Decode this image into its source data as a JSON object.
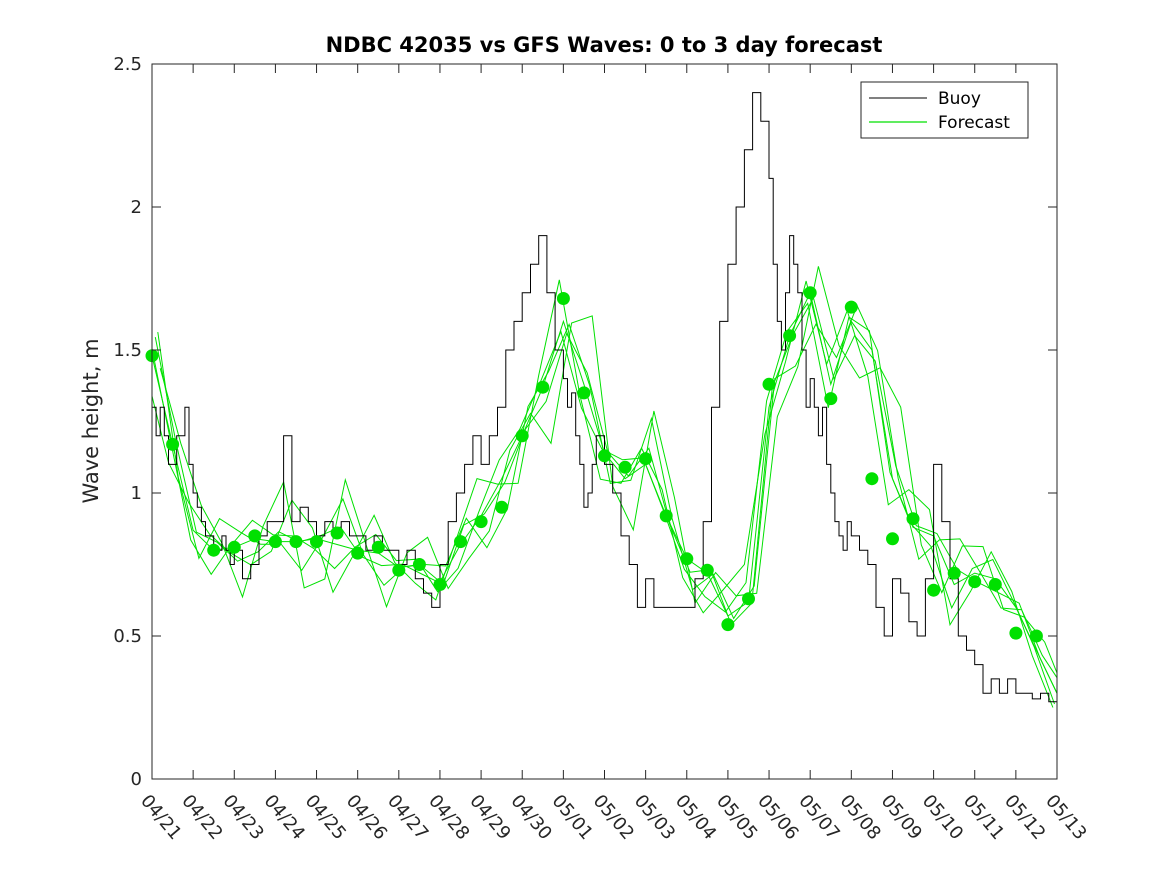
{
  "chart_data": {
    "type": "line",
    "title": "NDBC 42035 vs GFS Waves: 0 to 3 day forecast",
    "xlabel": "",
    "ylabel": "Wave height, m",
    "ylim": [
      0,
      2.5
    ],
    "xlim": [
      0,
      22
    ],
    "yticks": [
      0,
      0.5,
      1,
      1.5,
      2,
      2.5
    ],
    "ytick_labels": [
      "0",
      "0.5",
      "1",
      "1.5",
      "2",
      "2.5"
    ],
    "xtick_labels": [
      "04/21",
      "04/22",
      "04/23",
      "04/24",
      "04/25",
      "04/26",
      "04/27",
      "04/28",
      "04/29",
      "04/30",
      "05/01",
      "05/02",
      "05/03",
      "05/04",
      "05/05",
      "05/06",
      "05/07",
      "05/08",
      "05/09",
      "05/10",
      "05/11",
      "05/12",
      "05/13"
    ],
    "legend": {
      "position": "top-right",
      "entries": [
        "Buoy",
        "Forecast"
      ]
    },
    "colors": {
      "buoy": "#000000",
      "forecast": "#00e000",
      "axis": "#262626"
    },
    "series": [
      {
        "name": "Buoy",
        "x": [
          0,
          0.1,
          0.2,
          0.3,
          0.4,
          0.5,
          0.6,
          0.7,
          0.8,
          0.9,
          1.0,
          1.1,
          1.2,
          1.3,
          1.4,
          1.5,
          1.6,
          1.7,
          1.8,
          1.9,
          2.0,
          2.2,
          2.4,
          2.6,
          2.8,
          3.0,
          3.2,
          3.4,
          3.6,
          3.8,
          4.0,
          4.2,
          4.4,
          4.6,
          4.8,
          5.0,
          5.2,
          5.4,
          5.6,
          5.8,
          6.0,
          6.2,
          6.4,
          6.6,
          6.8,
          7.0,
          7.2,
          7.4,
          7.6,
          7.8,
          8.0,
          8.2,
          8.4,
          8.6,
          8.8,
          9.0,
          9.2,
          9.4,
          9.6,
          9.8,
          10.0,
          10.1,
          10.2,
          10.3,
          10.4,
          10.5,
          10.6,
          10.7,
          10.8,
          11.0,
          11.2,
          11.4,
          11.6,
          11.8,
          12.0,
          12.2,
          12.4,
          12.6,
          12.8,
          13.0,
          13.2,
          13.4,
          13.6,
          13.8,
          14.0,
          14.2,
          14.4,
          14.6,
          14.8,
          15.0,
          15.1,
          15.2,
          15.3,
          15.4,
          15.5,
          15.6,
          15.7,
          15.8,
          15.9,
          16.0,
          16.1,
          16.2,
          16.3,
          16.4,
          16.5,
          16.6,
          16.7,
          16.8,
          16.9,
          17.0,
          17.2,
          17.4,
          17.6,
          17.8,
          18.0,
          18.2,
          18.4,
          18.6,
          18.8,
          19.0,
          19.2,
          19.4,
          19.6,
          19.8,
          20.0,
          20.2,
          20.4,
          20.6,
          20.8,
          21.0,
          21.2,
          21.4,
          21.6,
          21.8,
          22.0
        ],
        "values": [
          1.3,
          1.2,
          1.3,
          1.2,
          1.1,
          1.1,
          1.2,
          1.2,
          1.3,
          1.1,
          1.0,
          0.95,
          0.9,
          0.85,
          0.85,
          0.8,
          0.8,
          0.85,
          0.8,
          0.75,
          0.8,
          0.7,
          0.75,
          0.85,
          0.9,
          0.9,
          1.2,
          0.9,
          0.95,
          0.9,
          0.85,
          0.9,
          0.85,
          0.9,
          0.85,
          0.85,
          0.8,
          0.85,
          0.8,
          0.8,
          0.75,
          0.8,
          0.7,
          0.65,
          0.6,
          0.75,
          0.9,
          1.0,
          1.1,
          1.2,
          1.1,
          1.2,
          1.3,
          1.5,
          1.6,
          1.7,
          1.8,
          1.9,
          1.7,
          1.5,
          1.4,
          1.3,
          1.35,
          1.2,
          1.1,
          0.95,
          1.0,
          1.1,
          1.2,
          1.1,
          1.0,
          0.85,
          0.75,
          0.6,
          0.7,
          0.6,
          0.6,
          0.6,
          0.6,
          0.6,
          0.7,
          0.9,
          1.3,
          1.6,
          1.8,
          2.0,
          2.2,
          2.4,
          2.3,
          2.1,
          1.8,
          1.6,
          1.5,
          1.7,
          1.9,
          1.8,
          1.7,
          1.5,
          1.3,
          1.4,
          1.3,
          1.2,
          1.3,
          1.1,
          1.0,
          0.9,
          0.85,
          0.8,
          0.9,
          0.85,
          0.8,
          0.75,
          0.6,
          0.5,
          0.7,
          0.65,
          0.55,
          0.5,
          0.7,
          1.1,
          0.9,
          0.7,
          0.5,
          0.45,
          0.4,
          0.3,
          0.35,
          0.3,
          0.35,
          0.3,
          0.3,
          0.28,
          0.3,
          0.27,
          0.27
        ]
      },
      {
        "name": "Forecast",
        "x": [
          0,
          0.5,
          1,
          1.5,
          2,
          2.5,
          3,
          3.5,
          4,
          4.5,
          5,
          5.5,
          6,
          6.5,
          7,
          7.5,
          8,
          8.5,
          9,
          9.5,
          10,
          10.5,
          11,
          11.5,
          12,
          12.5,
          13,
          13.5,
          14,
          14.5,
          15,
          15.5,
          16,
          16.5,
          17,
          17.5,
          18,
          18.5,
          19,
          19.5,
          20,
          20.5,
          21,
          21.5,
          22
        ],
        "values": [
          1.48,
          1.17,
          0.87,
          0.8,
          0.81,
          0.84,
          0.83,
          0.83,
          0.84,
          0.82,
          0.8,
          0.79,
          0.74,
          0.75,
          0.69,
          0.82,
          0.92,
          1.05,
          1.2,
          1.37,
          1.6,
          1.38,
          1.14,
          1.05,
          1.1,
          0.92,
          0.77,
          0.72,
          0.57,
          0.62,
          1.3,
          1.55,
          1.7,
          1.38,
          1.6,
          1.5,
          1.05,
          0.88,
          0.85,
          0.68,
          0.72,
          0.7,
          0.6,
          0.45,
          0.3
        ]
      },
      {
        "name": "Forecast markers",
        "x": [
          0,
          0.5,
          1.5,
          2,
          2.5,
          3,
          3.5,
          4,
          4.5,
          5,
          5.5,
          6,
          6.5,
          7,
          7.5,
          8,
          8.5,
          9,
          9.5,
          10,
          10.5,
          11,
          11.5,
          12,
          12.5,
          13,
          13.5,
          14,
          14.5,
          15,
          15.5,
          16,
          16.5,
          17,
          17.5,
          18,
          18.5,
          19,
          19.5,
          20,
          20.5,
          21,
          21.5
        ],
        "values": [
          1.48,
          1.17,
          0.8,
          0.81,
          0.85,
          0.83,
          0.83,
          0.83,
          0.86,
          0.79,
          0.81,
          0.73,
          0.75,
          0.68,
          0.83,
          0.9,
          0.95,
          1.2,
          1.37,
          1.68,
          1.35,
          1.13,
          1.09,
          1.12,
          0.92,
          0.77,
          0.73,
          0.54,
          0.63,
          1.38,
          1.55,
          1.7,
          1.33,
          1.65,
          1.05,
          0.84,
          0.91,
          0.66,
          0.72,
          0.69,
          0.68,
          0.51,
          0.5
        ]
      }
    ]
  }
}
